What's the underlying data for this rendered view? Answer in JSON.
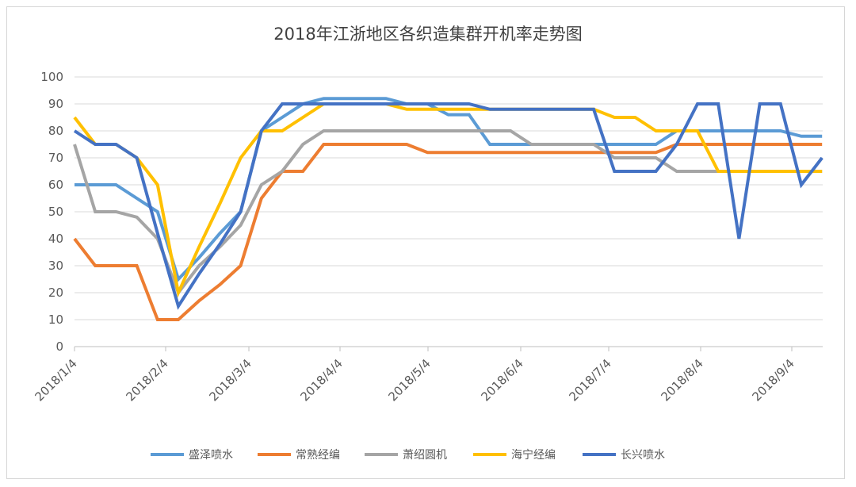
{
  "chart_data": {
    "type": "line",
    "title": "2018年江浙地区各织造集群开机率走势图",
    "xlabel": "",
    "ylabel": "",
    "ylim": [
      0,
      100
    ],
    "yticks": [
      "0",
      "10",
      "20",
      "30",
      "40",
      "50",
      "60",
      "70",
      "80",
      "90",
      "100"
    ],
    "xtick_labels": [
      "2018/1/4",
      "2018/2/4",
      "2018/3/4",
      "2018/4/4",
      "2018/5/4",
      "2018/6/4",
      "2018/7/4",
      "2018/8/4",
      "2018/9/4"
    ],
    "x_start": "2018/1/4",
    "x_interval": "weekly",
    "grid": true,
    "legend_position": "bottom",
    "series": [
      {
        "name": "盛泽喷水",
        "color": "#5b9bd5",
        "values": [
          60,
          60,
          60,
          55,
          50,
          25,
          33,
          42,
          50,
          80,
          85,
          90,
          92,
          92,
          92,
          92,
          90,
          90,
          86,
          86,
          75,
          75,
          75,
          75,
          75,
          75,
          75,
          75,
          75,
          80,
          80,
          80,
          80,
          80,
          80,
          78,
          78
        ]
      },
      {
        "name": "常熟经编",
        "color": "#ed7d31",
        "values": [
          40,
          30,
          30,
          30,
          10,
          10,
          17,
          23,
          30,
          55,
          65,
          65,
          75,
          75,
          75,
          75,
          75,
          72,
          72,
          72,
          72,
          72,
          72,
          72,
          72,
          72,
          72,
          72,
          72,
          75,
          75,
          75,
          75,
          75,
          75,
          75,
          75
        ]
      },
      {
        "name": "萧绍圆机",
        "color": "#a5a5a5",
        "values": [
          75,
          50,
          50,
          48,
          40,
          20,
          30,
          37,
          45,
          60,
          65,
          75,
          80,
          80,
          80,
          80,
          80,
          80,
          80,
          80,
          80,
          80,
          75,
          75,
          75,
          75,
          70,
          70,
          70,
          65,
          65,
          65,
          65,
          65,
          65,
          65,
          65
        ]
      },
      {
        "name": "海宁经编",
        "color": "#ffc000",
        "values": [
          85,
          75,
          75,
          70,
          60,
          20,
          37,
          53,
          70,
          80,
          80,
          85,
          90,
          90,
          90,
          90,
          88,
          88,
          88,
          88,
          88,
          88,
          88,
          88,
          88,
          88,
          85,
          85,
          80,
          80,
          80,
          65,
          65,
          65,
          65,
          65,
          65
        ]
      },
      {
        "name": "长兴喷水",
        "color": "#4472c4",
        "values": [
          80,
          75,
          75,
          70,
          42,
          15,
          27,
          38,
          50,
          80,
          90,
          90,
          90,
          90,
          90,
          90,
          90,
          90,
          90,
          90,
          88,
          88,
          88,
          88,
          88,
          88,
          65,
          65,
          65,
          75,
          90,
          90,
          40,
          90,
          90,
          60,
          70
        ]
      }
    ]
  }
}
